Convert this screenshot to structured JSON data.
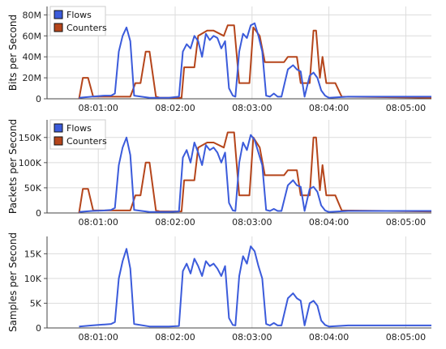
{
  "chart_data": [
    {
      "type": "line",
      "title": "",
      "xlabel": "",
      "ylabel": "Bits per Second",
      "x_ticks": [
        "08:01:00",
        "08:02:00",
        "08:03:00",
        "08:04:00",
        "08:05:00"
      ],
      "x_range": [
        "08:00:20",
        "08:05:20"
      ],
      "y_ticks": [
        "0",
        "20M",
        "40M",
        "60M",
        "80M"
      ],
      "y_tick_values": [
        0,
        20000000,
        40000000,
        60000000,
        80000000
      ],
      "ylim": [
        0,
        88000000
      ],
      "grid": true,
      "legend": "top-left",
      "series": [
        {
          "name": "Flows",
          "color": "#3b5bdb",
          "x": [
            "08:00:45",
            "08:00:55",
            "08:01:05",
            "08:01:10",
            "08:01:13",
            "08:01:16",
            "08:01:19",
            "08:01:22",
            "08:01:25",
            "08:01:28",
            "08:01:40",
            "08:01:55",
            "08:02:03",
            "08:02:06",
            "08:02:09",
            "08:02:12",
            "08:02:15",
            "08:02:18",
            "08:02:21",
            "08:02:24",
            "08:02:27",
            "08:02:30",
            "08:02:33",
            "08:02:36",
            "08:02:39",
            "08:02:42",
            "08:02:45",
            "08:02:47",
            "08:02:50",
            "08:02:53",
            "08:02:56",
            "08:02:59",
            "08:03:02",
            "08:03:05",
            "08:03:08",
            "08:03:11",
            "08:03:14",
            "08:03:17",
            "08:03:20",
            "08:03:23",
            "08:03:28",
            "08:03:32",
            "08:03:35",
            "08:03:38",
            "08:03:41",
            "08:03:45",
            "08:03:48",
            "08:03:51",
            "08:03:54",
            "08:03:57",
            "08:04:00",
            "08:04:15",
            "08:04:30",
            "08:04:45",
            "08:05:00",
            "08:05:20"
          ],
          "values": [
            1000000,
            2000000,
            3000000,
            3000000,
            5000000,
            45000000,
            60000000,
            68000000,
            55000000,
            3000000,
            1000000,
            1000000,
            2000000,
            45000000,
            52000000,
            48000000,
            60000000,
            55000000,
            40000000,
            62000000,
            56000000,
            60000000,
            58000000,
            48000000,
            55000000,
            10000000,
            3000000,
            2000000,
            45000000,
            62000000,
            58000000,
            70000000,
            72000000,
            60000000,
            45000000,
            3000000,
            2000000,
            5000000,
            2000000,
            2000000,
            28000000,
            32000000,
            28000000,
            26000000,
            2000000,
            22000000,
            25000000,
            20000000,
            8000000,
            3000000,
            1000000,
            2000000,
            2000000,
            2000000,
            2000000,
            2000000
          ]
        },
        {
          "name": "Counters",
          "color": "#b5451b",
          "x": [
            "08:00:45",
            "08:00:48",
            "08:00:52",
            "08:00:56",
            "08:01:00",
            "08:01:25",
            "08:01:29",
            "08:01:33",
            "08:01:37",
            "08:01:40",
            "08:01:45",
            "08:01:48",
            "08:02:00",
            "08:02:05",
            "08:02:07",
            "08:02:15",
            "08:02:18",
            "08:02:25",
            "08:02:30",
            "08:02:38",
            "08:02:41",
            "08:02:46",
            "08:02:50",
            "08:02:58",
            "08:03:01",
            "08:03:06",
            "08:03:10",
            "08:03:25",
            "08:03:28",
            "08:03:35",
            "08:03:38",
            "08:03:45",
            "08:03:48",
            "08:03:50",
            "08:03:53",
            "08:03:55",
            "08:03:58",
            "08:04:00",
            "08:04:05",
            "08:04:10",
            "08:05:20"
          ],
          "values": [
            0,
            20000000,
            20000000,
            2000000,
            2000000,
            2000000,
            15000000,
            15000000,
            45000000,
            45000000,
            2000000,
            1000000,
            1000000,
            1000000,
            30000000,
            30000000,
            60000000,
            65000000,
            65000000,
            60000000,
            70000000,
            70000000,
            15000000,
            15000000,
            68000000,
            60000000,
            35000000,
            35000000,
            40000000,
            40000000,
            15000000,
            15000000,
            65000000,
            65000000,
            20000000,
            40000000,
            15000000,
            15000000,
            15000000,
            2000000,
            1000000
          ]
        }
      ]
    },
    {
      "type": "line",
      "title": "",
      "xlabel": "",
      "ylabel": "Packets per Second",
      "x_ticks": [
        "08:01:00",
        "08:02:00",
        "08:03:00",
        "08:04:00",
        "08:05:00"
      ],
      "x_range": [
        "08:00:20",
        "08:05:20"
      ],
      "y_ticks": [
        "0",
        "50K",
        "100K",
        "150K"
      ],
      "y_tick_values": [
        0,
        50000,
        100000,
        150000
      ],
      "ylim": [
        0,
        185000
      ],
      "grid": true,
      "legend": "top-left",
      "series": [
        {
          "name": "Flows",
          "color": "#3b5bdb",
          "x": [
            "08:00:45",
            "08:00:55",
            "08:01:05",
            "08:01:10",
            "08:01:13",
            "08:01:16",
            "08:01:19",
            "08:01:22",
            "08:01:25",
            "08:01:28",
            "08:01:40",
            "08:01:55",
            "08:02:03",
            "08:02:06",
            "08:02:09",
            "08:02:12",
            "08:02:15",
            "08:02:18",
            "08:02:21",
            "08:02:24",
            "08:02:27",
            "08:02:30",
            "08:02:33",
            "08:02:36",
            "08:02:39",
            "08:02:42",
            "08:02:45",
            "08:02:47",
            "08:02:50",
            "08:02:53",
            "08:02:56",
            "08:02:59",
            "08:03:02",
            "08:03:05",
            "08:03:08",
            "08:03:11",
            "08:03:14",
            "08:03:17",
            "08:03:20",
            "08:03:23",
            "08:03:28",
            "08:03:32",
            "08:03:35",
            "08:03:38",
            "08:03:41",
            "08:03:45",
            "08:03:48",
            "08:03:51",
            "08:03:54",
            "08:03:57",
            "08:04:00",
            "08:04:15",
            "08:04:30",
            "08:04:45",
            "08:05:00",
            "08:05:20"
          ],
          "values": [
            2000,
            4000,
            5000,
            6000,
            10000,
            95000,
            130000,
            150000,
            115000,
            6000,
            2000,
            2000,
            3000,
            110000,
            125000,
            100000,
            140000,
            120000,
            95000,
            135000,
            125000,
            130000,
            120000,
            100000,
            120000,
            20000,
            5000,
            4000,
            100000,
            140000,
            125000,
            155000,
            145000,
            120000,
            95000,
            6000,
            4000,
            8000,
            4000,
            4000,
            55000,
            65000,
            55000,
            52000,
            4000,
            48000,
            52000,
            42000,
            15000,
            5000,
            2000,
            4000,
            4000,
            4000,
            4000,
            4000
          ]
        },
        {
          "name": "Counters",
          "color": "#b5451b",
          "x": [
            "08:00:45",
            "08:00:48",
            "08:00:52",
            "08:00:56",
            "08:01:00",
            "08:01:25",
            "08:01:29",
            "08:01:33",
            "08:01:37",
            "08:01:40",
            "08:01:45",
            "08:01:48",
            "08:02:00",
            "08:02:05",
            "08:02:07",
            "08:02:15",
            "08:02:18",
            "08:02:25",
            "08:02:30",
            "08:02:38",
            "08:02:41",
            "08:02:46",
            "08:02:50",
            "08:02:58",
            "08:03:01",
            "08:03:06",
            "08:03:10",
            "08:03:25",
            "08:03:28",
            "08:03:35",
            "08:03:38",
            "08:03:45",
            "08:03:48",
            "08:03:50",
            "08:03:53",
            "08:03:55",
            "08:03:58",
            "08:04:00",
            "08:04:05",
            "08:04:10",
            "08:05:20"
          ],
          "values": [
            0,
            48000,
            48000,
            5000,
            5000,
            5000,
            35000,
            35000,
            100000,
            100000,
            5000,
            3000,
            3000,
            3000,
            65000,
            65000,
            130000,
            140000,
            140000,
            130000,
            160000,
            160000,
            35000,
            35000,
            150000,
            130000,
            75000,
            75000,
            85000,
            85000,
            35000,
            35000,
            150000,
            150000,
            45000,
            95000,
            35000,
            35000,
            35000,
            5000,
            3000
          ]
        }
      ]
    },
    {
      "type": "line",
      "title": "",
      "xlabel": "",
      "ylabel": "Samples per Second",
      "x_ticks": [
        "08:01:00",
        "08:02:00",
        "08:03:00",
        "08:04:00",
        "08:05:00"
      ],
      "x_range": [
        "08:00:20",
        "08:05:20"
      ],
      "y_ticks": [
        "0",
        "5K",
        "10K",
        "15K"
      ],
      "y_tick_values": [
        0,
        5000,
        10000,
        15000
      ],
      "ylim": [
        0,
        18500
      ],
      "grid": true,
      "legend": "none",
      "series": [
        {
          "name": "Flows",
          "color": "#3b5bdb",
          "x": [
            "08:00:45",
            "08:00:55",
            "08:01:05",
            "08:01:10",
            "08:01:13",
            "08:01:16",
            "08:01:19",
            "08:01:22",
            "08:01:25",
            "08:01:28",
            "08:01:40",
            "08:01:55",
            "08:02:03",
            "08:02:06",
            "08:02:09",
            "08:02:12",
            "08:02:15",
            "08:02:18",
            "08:02:21",
            "08:02:24",
            "08:02:27",
            "08:02:30",
            "08:02:33",
            "08:02:36",
            "08:02:39",
            "08:02:42",
            "08:02:45",
            "08:02:47",
            "08:02:50",
            "08:02:53",
            "08:02:56",
            "08:02:59",
            "08:03:02",
            "08:03:05",
            "08:03:08",
            "08:03:11",
            "08:03:14",
            "08:03:17",
            "08:03:20",
            "08:03:23",
            "08:03:28",
            "08:03:32",
            "08:03:35",
            "08:03:38",
            "08:03:41",
            "08:03:45",
            "08:03:48",
            "08:03:51",
            "08:03:54",
            "08:03:57",
            "08:04:00",
            "08:04:15",
            "08:04:30",
            "08:04:45",
            "08:05:00",
            "08:05:20"
          ],
          "values": [
            300,
            500,
            700,
            800,
            1200,
            10000,
            13500,
            16000,
            12000,
            800,
            300,
            300,
            400,
            11500,
            13000,
            11000,
            14000,
            12500,
            10500,
            13500,
            12500,
            13000,
            12000,
            10500,
            12500,
            2000,
            600,
            500,
            10500,
            14500,
            13000,
            16500,
            15500,
            12500,
            10000,
            800,
            500,
            1000,
            500,
            500,
            6000,
            7000,
            6000,
            5500,
            500,
            5000,
            5500,
            4500,
            1500,
            600,
            300,
            500,
            500,
            500,
            500,
            500
          ]
        }
      ]
    }
  ]
}
